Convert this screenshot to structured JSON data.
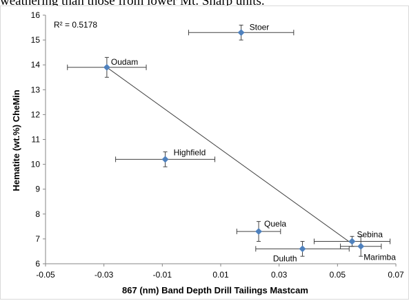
{
  "caption_fragment": "weathering than those from lower Mt. Sharp units.",
  "chart_data": {
    "type": "scatter",
    "xlabel": "867 (nm) Band Depth Drill Tailings Mastcam",
    "ylabel": "Hematite (wt.%) CheMin",
    "annotation": "R² = 0.5178",
    "xlim": [
      -0.05,
      0.07
    ],
    "ylim": [
      6,
      16
    ],
    "xticks": [
      -0.05,
      -0.03,
      -0.01,
      0.01,
      0.03,
      0.05,
      0.07
    ],
    "xtick_labels": [
      "-0.05",
      "-0.03",
      "-0.01",
      "0.01",
      "0.03",
      "0.05",
      "0.07"
    ],
    "yticks": [
      6,
      7,
      8,
      9,
      10,
      11,
      12,
      13,
      14,
      15,
      16
    ],
    "ytick_labels": [
      "6",
      "7",
      "8",
      "9",
      "10",
      "11",
      "12",
      "13",
      "14",
      "15",
      "16"
    ],
    "grid": false,
    "marker_color": "#4f81bd",
    "points": [
      {
        "label": "Stoer",
        "x": 0.017,
        "y": 15.3,
        "xerr": 0.018,
        "yerr": 0.3
      },
      {
        "label": "Oudam",
        "x": -0.029,
        "y": 13.9,
        "xerr": 0.0135,
        "yerr": 0.4
      },
      {
        "label": "Highfield",
        "x": -0.009,
        "y": 10.2,
        "xerr": 0.017,
        "yerr": 0.3
      },
      {
        "label": "Quela",
        "x": 0.023,
        "y": 7.3,
        "xerr": 0.0075,
        "yerr": 0.4
      },
      {
        "label": "Sebina",
        "x": 0.055,
        "y": 6.9,
        "xerr": 0.013,
        "yerr": 0.2
      },
      {
        "label": "Duluth",
        "x": 0.038,
        "y": 6.6,
        "xerr": 0.016,
        "yerr": 0.3
      },
      {
        "label": "Marimba",
        "x": 0.058,
        "y": 6.7,
        "xerr": 0.007,
        "yerr": 0.4
      }
    ],
    "trendline": {
      "x": [
        -0.029,
        0.055
      ],
      "y": [
        13.9,
        6.8
      ]
    }
  }
}
